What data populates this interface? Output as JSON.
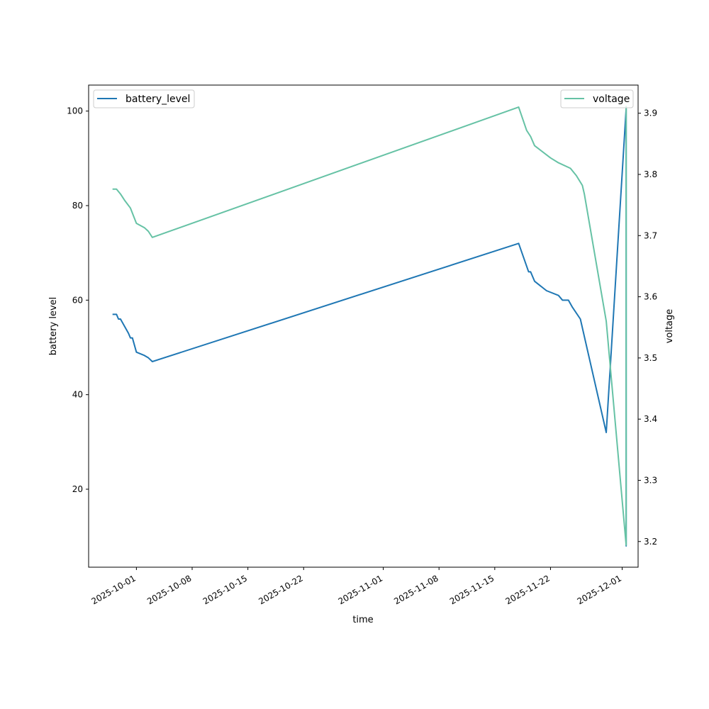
{
  "chart_data": {
    "type": "line",
    "xlabel": "time",
    "x_axis": {
      "type": "date",
      "range": [
        "2025-09-25",
        "2025-12-03"
      ],
      "ticks": [
        "2025-10-01",
        "2025-10-08",
        "2025-10-15",
        "2025-10-22",
        "2025-11-01",
        "2025-11-08",
        "2025-11-15",
        "2025-11-22",
        "2025-12-01"
      ]
    },
    "y_left": {
      "label": "battery level",
      "range": [
        3.5,
        105.5
      ],
      "ticks": [
        20,
        40,
        60,
        80,
        100
      ]
    },
    "y_right": {
      "label": "voltage",
      "range": [
        3.158,
        3.946
      ],
      "ticks": [
        "3.2",
        "3.3",
        "3.4",
        "3.5",
        "3.6",
        "3.7",
        "3.8",
        "3.9"
      ]
    },
    "grid": false,
    "series": [
      {
        "name": "battery_level",
        "axis": "left",
        "color": "#1f77b4",
        "legend_position": "upper-left",
        "points": [
          [
            "2025-09-28T00:00",
            57
          ],
          [
            "2025-09-28T12:00",
            57
          ],
          [
            "2025-09-28T18:00",
            56
          ],
          [
            "2025-09-29T00:00",
            56
          ],
          [
            "2025-09-29T12:00",
            54.5
          ],
          [
            "2025-09-30T00:00",
            53
          ],
          [
            "2025-09-30T06:00",
            52
          ],
          [
            "2025-09-30T12:00",
            52
          ],
          [
            "2025-10-01T00:00",
            49
          ],
          [
            "2025-10-02T00:00",
            48.3
          ],
          [
            "2025-10-02T12:00",
            47.8
          ],
          [
            "2025-10-03T00:00",
            47
          ],
          [
            "2025-11-18T00:00",
            72
          ],
          [
            "2025-11-19T06:00",
            66
          ],
          [
            "2025-11-19T12:00",
            66
          ],
          [
            "2025-11-20T00:00",
            64
          ],
          [
            "2025-11-21T12:00",
            62
          ],
          [
            "2025-11-23T00:00",
            61
          ],
          [
            "2025-11-23T12:00",
            60
          ],
          [
            "2025-11-24T06:00",
            60
          ],
          [
            "2025-11-24T18:00",
            58.5
          ],
          [
            "2025-11-25T18:00",
            56
          ],
          [
            "2025-11-29T00:00",
            32
          ],
          [
            "2025-12-01T12:00",
            100.5
          ],
          [
            "2025-12-01T12:00",
            8
          ],
          [
            "2025-12-01T12:00",
            100.5
          ]
        ]
      },
      {
        "name": "voltage",
        "axis": "right",
        "color": "#66c2a5",
        "legend_position": "upper-right",
        "points": [
          [
            "2025-09-28T00:00",
            3.776
          ],
          [
            "2025-09-28T12:00",
            3.776
          ],
          [
            "2025-09-29T00:00",
            3.768
          ],
          [
            "2025-09-29T12:00",
            3.758
          ],
          [
            "2025-09-30T06:00",
            3.745
          ],
          [
            "2025-10-01T00:00",
            3.72
          ],
          [
            "2025-10-02T00:00",
            3.713
          ],
          [
            "2025-10-02T12:00",
            3.707
          ],
          [
            "2025-10-03T00:00",
            3.697
          ],
          [
            "2025-11-18T00:00",
            3.91
          ],
          [
            "2025-11-19T00:00",
            3.872
          ],
          [
            "2025-11-19T12:00",
            3.862
          ],
          [
            "2025-11-20T00:00",
            3.847
          ],
          [
            "2025-11-22T00:00",
            3.827
          ],
          [
            "2025-11-23T00:00",
            3.819
          ],
          [
            "2025-11-24T12:00",
            3.81
          ],
          [
            "2025-11-25T06:00",
            3.798
          ],
          [
            "2025-11-26T00:00",
            3.782
          ],
          [
            "2025-11-26T06:00",
            3.768
          ],
          [
            "2025-11-29T00:00",
            3.56
          ],
          [
            "2025-12-01T12:00",
            3.194
          ],
          [
            "2025-12-01T12:00",
            3.912
          ]
        ]
      }
    ]
  }
}
